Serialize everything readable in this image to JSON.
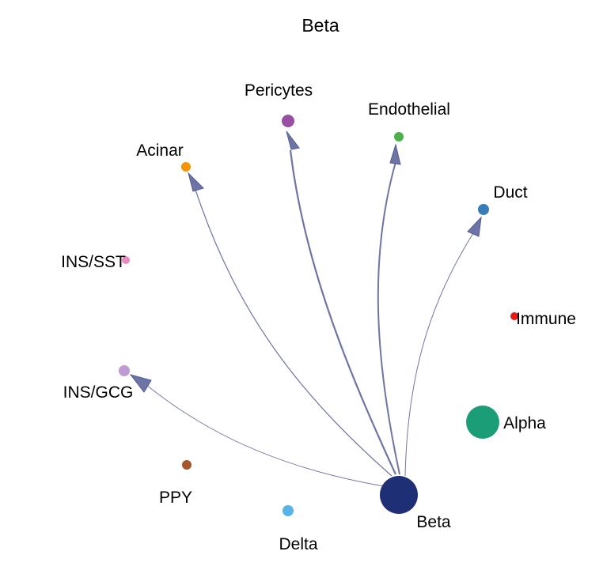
{
  "title": "Beta",
  "diagram": {
    "type": "circle-network",
    "source": "Beta",
    "nodes": [
      {
        "id": "Pericytes",
        "label": "Pericytes",
        "color": "#984ea3"
      },
      {
        "id": "Endothelial",
        "label": "Endothelial",
        "color": "#4daf4a"
      },
      {
        "id": "Acinar",
        "label": "Acinar",
        "color": "#f29403"
      },
      {
        "id": "Duct",
        "label": "Duct",
        "color": "#377eb8"
      },
      {
        "id": "INS/SST",
        "label": "INS/SST",
        "color": "#e78ac3"
      },
      {
        "id": "Immune",
        "label": "Immune",
        "color": "#e41a1c"
      },
      {
        "id": "INS/GCG",
        "label": "INS/GCG",
        "color": "#c09ad4"
      },
      {
        "id": "Alpha",
        "label": "Alpha",
        "color": "#1b9e77"
      },
      {
        "id": "PPY",
        "label": "PPY",
        "color": "#a65628"
      },
      {
        "id": "Delta",
        "label": "Delta",
        "color": "#56b4e9"
      },
      {
        "id": "Beta",
        "label": "Beta",
        "color": "#1f2f75"
      }
    ],
    "edges": [
      {
        "from": "Beta",
        "to": "Pericytes"
      },
      {
        "from": "Beta",
        "to": "Endothelial"
      },
      {
        "from": "Beta",
        "to": "Acinar"
      },
      {
        "from": "Beta",
        "to": "Duct"
      },
      {
        "from": "Beta",
        "to": "INS/GCG"
      }
    ],
    "edge_color": "#6e75a6"
  }
}
